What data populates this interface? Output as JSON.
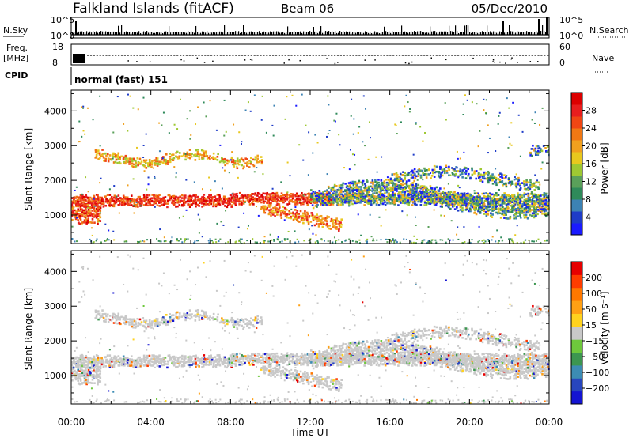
{
  "header": {
    "station": "Falkland Islands (fitACF)",
    "beam": "Beam 06",
    "date": "05/Dec/2010"
  },
  "left_labels": {
    "nsky": "N.Sky",
    "freq_top": "Freq.",
    "freq_unit": "[MHz]",
    "cpid": "CPID"
  },
  "right_labels": {
    "nsearch": "N.Search",
    "nave": "Nave"
  },
  "cpid_text": "normal (fast) 151",
  "colors": {
    "power": [
      "#1a1aff",
      "#1e3cc8",
      "#3c82b4",
      "#2f8a5a",
      "#5aa05a",
      "#9ec832",
      "#e8c81e",
      "#f0a01e",
      "#f07814",
      "#f04614",
      "#e81e1e",
      "#dc0000"
    ],
    "velocity": [
      "#1414d2",
      "#2846be",
      "#3c8cb4",
      "#3c9650",
      "#6ec83c",
      "#c8c8c8",
      "#ffd21e",
      "#ffa014",
      "#ff7800",
      "#ff3c00",
      "#e60000"
    ]
  },
  "chart_data": [
    {
      "type": "line",
      "name": "noise-panel",
      "ylabel_left": "N.Sky",
      "ylabel_right": "N.Search",
      "yticks_left": [
        "10^5",
        "10^0"
      ],
      "yticks_right": [
        "10^5",
        "10^0"
      ]
    },
    {
      "type": "scatter",
      "name": "freq-panel",
      "ylabel_left": "Freq. [MHz]",
      "ylabel_right": "Nave",
      "yticks_left": [
        "18",
        "8"
      ],
      "yticks_right": [
        "60",
        "0"
      ]
    },
    {
      "type": "heatmap",
      "name": "power-panel",
      "ylabel": "Slant Range [km]",
      "yticks": [
        "1000",
        "2000",
        "3000",
        "4000"
      ],
      "ylim": [
        180,
        4600
      ],
      "colorbar_label": "Power [dB]",
      "colorbar_ticks": [
        "4",
        "8",
        "12",
        "16",
        "20",
        "24",
        "28"
      ]
    },
    {
      "type": "heatmap",
      "name": "velocity-panel",
      "ylabel": "Slant Range [km]",
      "yticks": [
        "1000",
        "2000",
        "3000",
        "4000"
      ],
      "ylim": [
        180,
        4600
      ],
      "colorbar_label": "Velocity [m s⁻¹]",
      "colorbar_ticks": [
        "200",
        "100",
        "50",
        "15",
        "−15",
        "−50",
        "−100",
        "−200"
      ]
    }
  ],
  "time_axis": {
    "ticks": [
      "00:00",
      "04:00",
      "08:00",
      "12:00",
      "16:00",
      "20:00",
      "00:00"
    ],
    "label": "Time UT"
  }
}
